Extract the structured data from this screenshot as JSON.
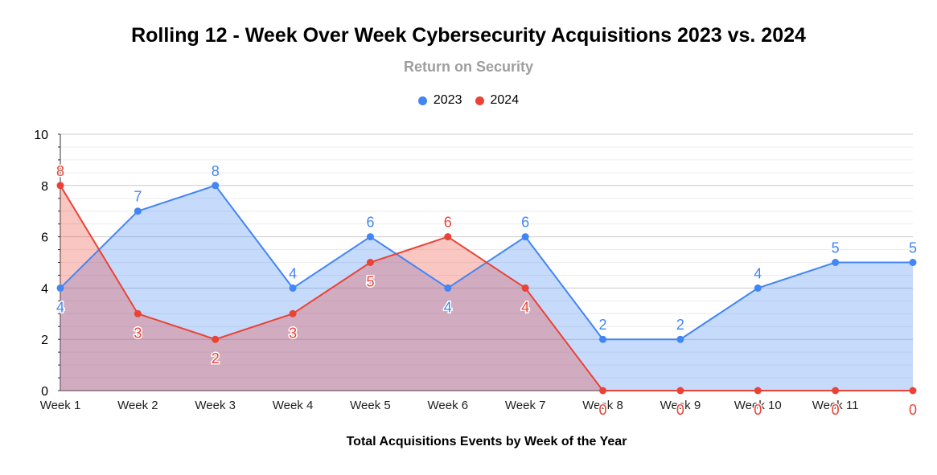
{
  "chart_data": {
    "type": "area",
    "title": "Rolling 12 - Week Over Week Cybersecurity Acquisitions 2023 vs. 2024",
    "subtitle": "Return on Security",
    "xlabel": "Total Acquisitions Events by Week of the Year",
    "ylabel": "",
    "categories": [
      "Week 1",
      "Week 2",
      "Week 3",
      "Week 4",
      "Week 5",
      "Week 6",
      "Week 7",
      "Week 8",
      "Week 9",
      "Week 10",
      "Week 11",
      ""
    ],
    "ylim": [
      0,
      10
    ],
    "yticks": [
      0,
      2,
      4,
      6,
      8,
      10
    ],
    "grid": true,
    "legend_position": "top",
    "series": [
      {
        "name": "2023",
        "color": "#4285f4",
        "values": [
          4,
          7,
          8,
          4,
          6,
          4,
          6,
          2,
          2,
          4,
          5,
          5
        ]
      },
      {
        "name": "2024",
        "color": "#ea4335",
        "values": [
          8,
          3,
          2,
          3,
          5,
          6,
          4,
          0,
          0,
          0,
          0,
          0
        ]
      }
    ]
  }
}
